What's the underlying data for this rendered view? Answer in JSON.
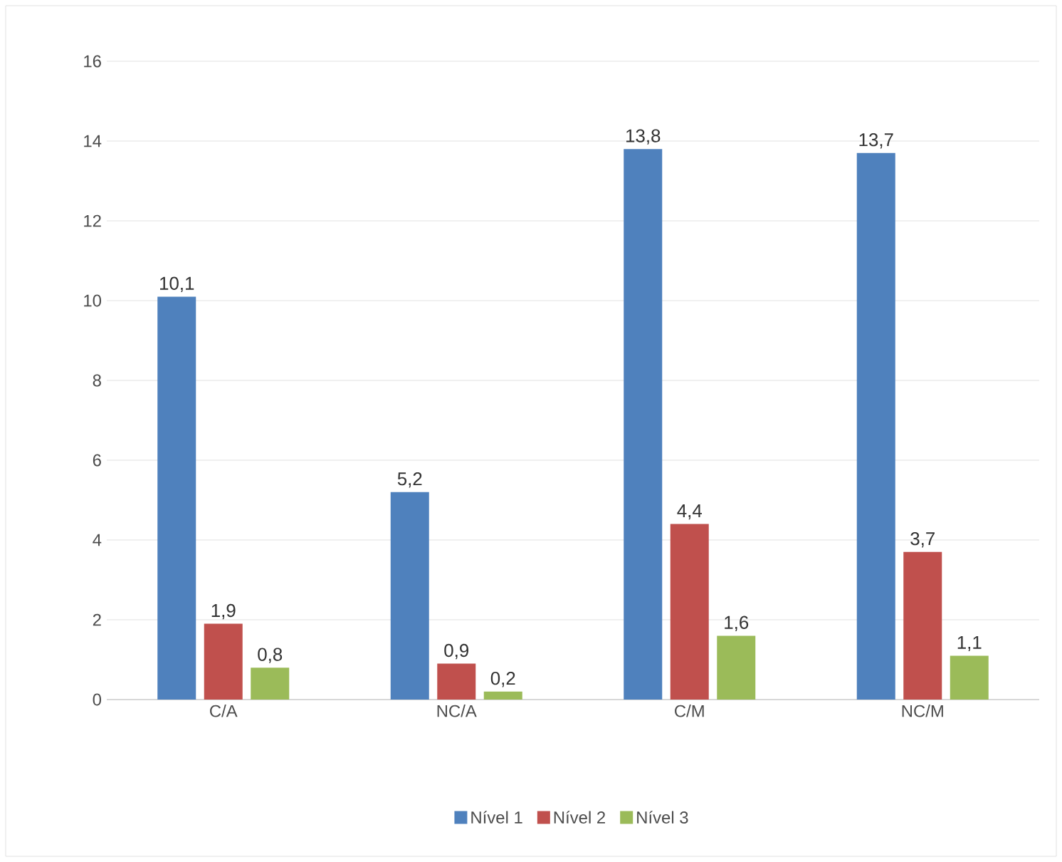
{
  "chart_data": {
    "type": "bar",
    "categories": [
      "C/A",
      "NC/A",
      "C/M",
      "NC/M"
    ],
    "series": [
      {
        "name": "Nível 1",
        "color": "#4f81bd",
        "values": [
          10.1,
          5.2,
          13.8,
          13.7
        ],
        "value_labels": [
          "10,1",
          "5,2",
          "13,8",
          "13,7"
        ]
      },
      {
        "name": "Nível 2",
        "color": "#c0504d",
        "values": [
          1.9,
          0.9,
          4.4,
          3.7
        ],
        "value_labels": [
          "1,9",
          "0,9",
          "4,4",
          "3,7"
        ]
      },
      {
        "name": "Nível 3",
        "color": "#9bbb59",
        "values": [
          0.8,
          0.2,
          1.6,
          1.1
        ],
        "value_labels": [
          "0,8",
          "0,2",
          "1,6",
          "1,1"
        ]
      }
    ],
    "ylim": [
      0,
      16
    ],
    "yticks": [
      0,
      2,
      4,
      6,
      8,
      10,
      12,
      14,
      16
    ],
    "grid": "y",
    "legend": "bottom"
  }
}
